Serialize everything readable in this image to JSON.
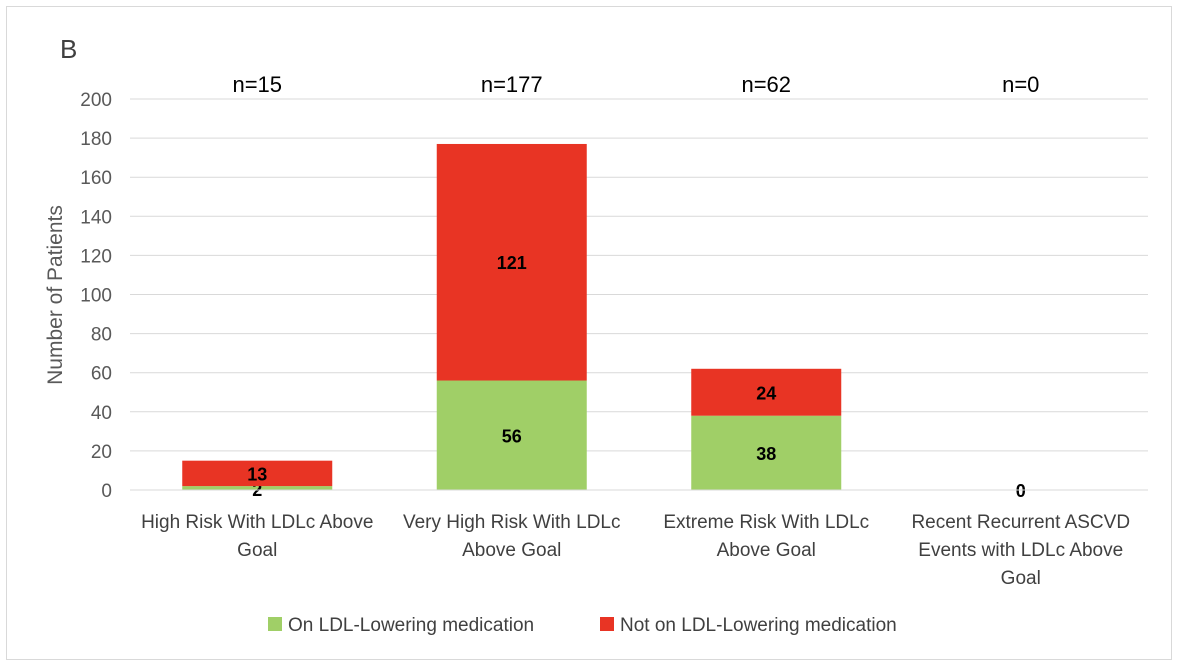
{
  "chart_data": {
    "type": "bar",
    "stacked": true,
    "panel_label": "B",
    "ylabel": "Number of Patients",
    "ylim": [
      0,
      200
    ],
    "yticks": [
      0,
      20,
      40,
      60,
      80,
      100,
      120,
      140,
      160,
      180,
      200
    ],
    "grid": true,
    "legend_position": "bottom",
    "categories": [
      [
        "High Risk With LDLc Above",
        "Goal"
      ],
      [
        "Very High Risk With LDLc",
        "Above Goal"
      ],
      [
        "Extreme Risk With LDLc",
        "Above Goal"
      ],
      [
        "Recent Recurrent ASCVD",
        "Events with LDLc Above",
        "Goal"
      ]
    ],
    "totals_labels": [
      "n=15",
      "n=177",
      "n=62",
      "n=0"
    ],
    "series": [
      {
        "name": "On LDL-Lowering medication",
        "color": "#a0cf67",
        "values": [
          2,
          56,
          38,
          0
        ]
      },
      {
        "name": "Not on LDL-Lowering medication",
        "color": "#e83424",
        "values": [
          13,
          121,
          24,
          0
        ]
      }
    ],
    "data_labels": [
      [
        "2",
        "13"
      ],
      [
        "56",
        "121"
      ],
      [
        "38",
        "24"
      ],
      [
        "0",
        ""
      ]
    ]
  }
}
